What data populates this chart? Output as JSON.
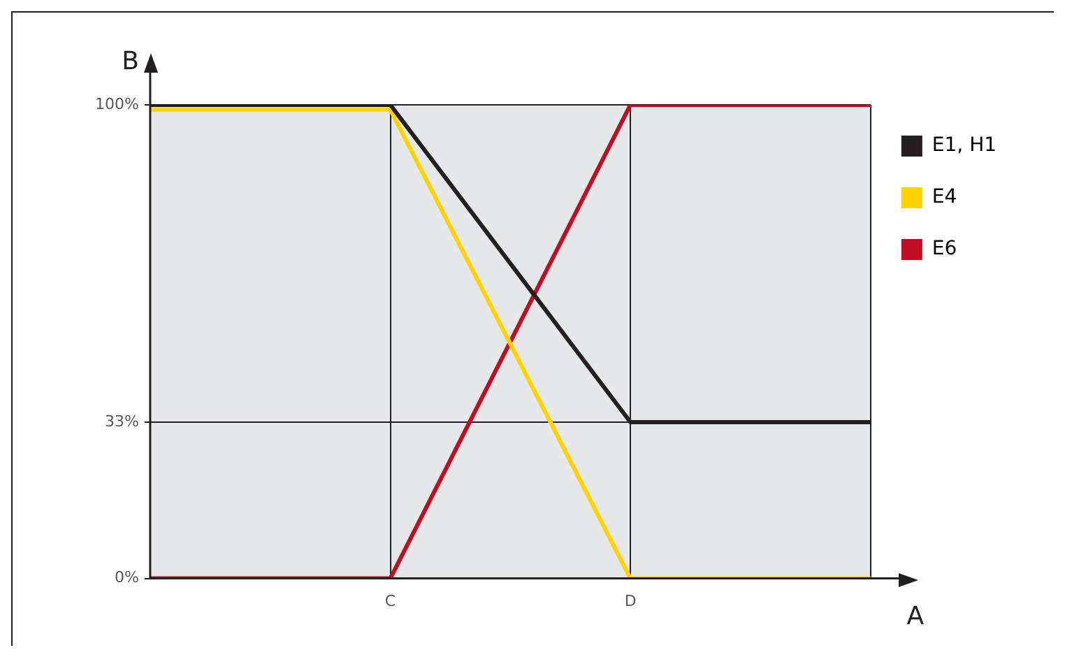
{
  "chart_data": {
    "type": "line",
    "xlabel": "A",
    "ylabel": "B",
    "categories": [
      null,
      "C",
      "D",
      null
    ],
    "series": [
      {
        "name": "E1, H1",
        "color": "#231f20",
        "values": [
          100,
          100,
          33,
          33
        ]
      },
      {
        "name": "E4",
        "color": "#ffd200",
        "values": [
          99,
          99,
          0,
          0
        ]
      },
      {
        "name": "E6",
        "color": "#c00d23",
        "values": [
          0,
          0,
          100,
          100
        ]
      }
    ],
    "ylim": [
      0,
      100
    ],
    "yticks": [
      {
        "value": 0,
        "label": "0%"
      },
      {
        "value": 33,
        "label": "33%"
      },
      {
        "value": 100,
        "label": "100%"
      }
    ],
    "grid": true,
    "legend": "top right",
    "marker": "none",
    "line_style": "solid"
  }
}
